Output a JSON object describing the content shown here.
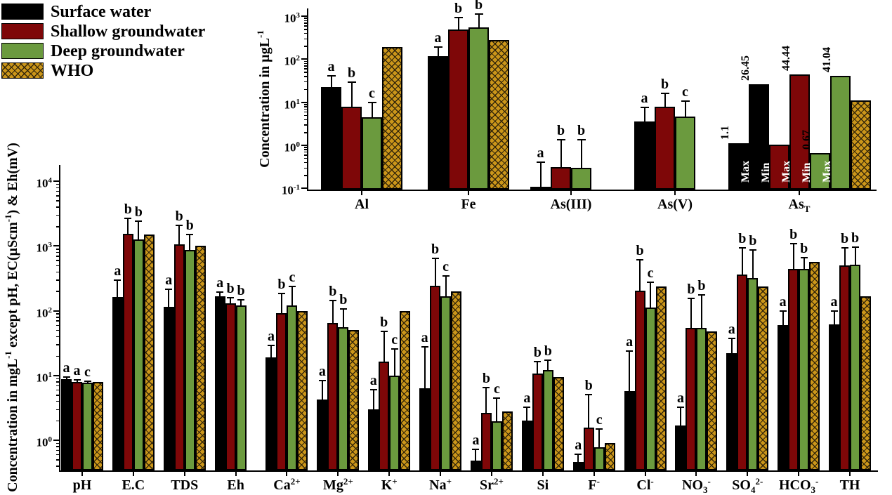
{
  "colors": {
    "surface": "#000000",
    "shallow": "#7E0708",
    "deep": "#6B9A3E",
    "who": "#CB961A",
    "who_hatch": "#33260a"
  },
  "legend": {
    "position": "top-left",
    "items": [
      {
        "series": "surface",
        "label": "Surface water"
      },
      {
        "series": "shallow",
        "label": "Shallow groundwater"
      },
      {
        "series": "deep",
        "label": "Deep groundwater"
      },
      {
        "series": "who",
        "label": "WHO",
        "pattern": "crosshatch"
      }
    ]
  },
  "chart_data": [
    {
      "id": "main",
      "type": "bar",
      "yscale": "log",
      "ylim": [
        0.34,
        17800
      ],
      "grid": false,
      "ytick_exponents": [
        0,
        1,
        2,
        3,
        4
      ],
      "ylabel_segments": [
        {
          "t": "Concentration in mgL"
        },
        {
          "t": "-1",
          "sup": true
        },
        {
          "t": " except pH, EC(µScm"
        },
        {
          "t": "-1",
          "sup": true
        },
        {
          "t": ") & Eh(mV)"
        }
      ],
      "categories": [
        {
          "label": {
            "main": "pH"
          },
          "bars": [
            {
              "series": "surface",
              "v": 8.7,
              "e": 9.4,
              "letter": "a"
            },
            {
              "series": "shallow",
              "v": 7.9,
              "e": 8.5,
              "letter": "a"
            },
            {
              "series": "deep",
              "v": 7.8,
              "e": 8.2,
              "letter": "c"
            },
            {
              "series": "who",
              "v": 8
            }
          ]
        },
        {
          "label": {
            "main": "E.C"
          },
          "bars": [
            {
              "series": "surface",
              "v": 165,
              "e": 300,
              "letter": "a"
            },
            {
              "series": "shallow",
              "v": 1550,
              "e": 2700,
              "letter": "b"
            },
            {
              "series": "deep",
              "v": 1250,
              "e": 2450,
              "letter": "b"
            },
            {
              "series": "who",
              "v": 1500
            }
          ]
        },
        {
          "label": {
            "main": "TDS"
          },
          "bars": [
            {
              "series": "surface",
              "v": 115,
              "e": 215,
              "letter": "a"
            },
            {
              "series": "shallow",
              "v": 1060,
              "e": 2100,
              "letter": "b"
            },
            {
              "series": "deep",
              "v": 860,
              "e": 1500,
              "letter": "b"
            },
            {
              "series": "who",
              "v": 1000
            }
          ]
        },
        {
          "label": {
            "main": "Eh"
          },
          "bars": [
            {
              "series": "surface",
              "v": 167,
              "e": 196,
              "letter": "a"
            },
            {
              "series": "shallow",
              "v": 131,
              "e": 160,
              "letter": "b"
            },
            {
              "series": "deep",
              "v": 122,
              "e": 147,
              "letter": "b"
            }
          ]
        },
        {
          "label": {
            "main": "Ca",
            "sup": "2+"
          },
          "bars": [
            {
              "series": "surface",
              "v": 19,
              "e": 29,
              "letter": "a"
            },
            {
              "series": "shallow",
              "v": 92,
              "e": 187,
              "letter": "b"
            },
            {
              "series": "deep",
              "v": 120,
              "e": 235,
              "letter": "c"
            },
            {
              "series": "who",
              "v": 100
            }
          ]
        },
        {
          "label": {
            "main": "Mg",
            "sup": "2+"
          },
          "bars": [
            {
              "series": "surface",
              "v": 4.3,
              "e": 8.4,
              "letter": "a"
            },
            {
              "series": "shallow",
              "v": 65,
              "e": 144,
              "letter": "b"
            },
            {
              "series": "deep",
              "v": 56,
              "e": 108,
              "letter": "b"
            },
            {
              "series": "who",
              "v": 50
            }
          ]
        },
        {
          "label": {
            "main": "K",
            "sup": "+"
          },
          "bars": [
            {
              "series": "surface",
              "v": 3.0,
              "e": 6.1,
              "letter": "a"
            },
            {
              "series": "shallow",
              "v": 16.5,
              "e": 48,
              "letter": "b"
            },
            {
              "series": "deep",
              "v": 10,
              "e": 26,
              "letter": "c"
            },
            {
              "series": "who",
              "v": 100
            }
          ]
        },
        {
          "label": {
            "main": "Na",
            "sup": "+"
          },
          "bars": [
            {
              "series": "surface",
              "v": 6.3,
              "e": 28,
              "letter": "a"
            },
            {
              "series": "shallow",
              "v": 245,
              "e": 645,
              "letter": "b"
            },
            {
              "series": "deep",
              "v": 167,
              "e": 345,
              "letter": "c"
            },
            {
              "series": "who",
              "v": 200
            }
          ]
        },
        {
          "label": {
            "main": "Sr",
            "sup": "2+"
          },
          "bars": [
            {
              "series": "surface",
              "v": 0.48,
              "e": 0.72,
              "letter": "a"
            },
            {
              "series": "shallow",
              "v": 2.65,
              "e": 6.5,
              "letter": "b"
            },
            {
              "series": "deep",
              "v": 1.95,
              "e": 4.5,
              "letter": "c"
            },
            {
              "series": "who",
              "v": 2.8
            }
          ]
        },
        {
          "label": {
            "main": "Si"
          },
          "bars": [
            {
              "series": "surface",
              "v": 2.0,
              "e": 3.2,
              "letter": "a"
            },
            {
              "series": "shallow",
              "v": 10.7,
              "e": 16.4,
              "letter": "b"
            },
            {
              "series": "deep",
              "v": 12.1,
              "e": 17.2,
              "letter": "b"
            },
            {
              "series": "who",
              "v": 9.5
            }
          ]
        },
        {
          "label": {
            "main": "F",
            "sup": "-"
          },
          "bars": [
            {
              "series": "surface",
              "v": 0.46,
              "e": 0.61,
              "letter": "a"
            },
            {
              "series": "shallow",
              "v": 1.55,
              "e": 5.1,
              "letter": "b"
            },
            {
              "series": "deep",
              "v": 0.78,
              "e": 1.5,
              "letter": "c"
            },
            {
              "series": "who",
              "v": 0.9
            }
          ]
        },
        {
          "label": {
            "main": "Cl",
            "sup": "-"
          },
          "bars": [
            {
              "series": "surface",
              "v": 5.7,
              "e": 24,
              "letter": "a"
            },
            {
              "series": "shallow",
              "v": 205,
              "e": 610,
              "letter": "b"
            },
            {
              "series": "deep",
              "v": 112,
              "e": 275,
              "letter": "c"
            },
            {
              "series": "who",
              "v": 240
            }
          ]
        },
        {
          "label": {
            "main": "NO",
            "sub": "3",
            "sup": "-"
          },
          "bars": [
            {
              "series": "surface",
              "v": 1.7,
              "e": 3.2,
              "letter": "a"
            },
            {
              "series": "shallow",
              "v": 54,
              "e": 155,
              "letter": "b"
            },
            {
              "series": "deep",
              "v": 54,
              "e": 175,
              "letter": "b"
            },
            {
              "series": "who",
              "v": 48
            }
          ]
        },
        {
          "label": {
            "main": "SO",
            "sub": "4",
            "sup": "2-"
          },
          "bars": [
            {
              "series": "surface",
              "v": 22,
              "e": 37,
              "letter": "a"
            },
            {
              "series": "shallow",
              "v": 360,
              "e": 930,
              "letter": "b"
            },
            {
              "series": "deep",
              "v": 320,
              "e": 870,
              "letter": "b"
            },
            {
              "series": "who",
              "v": 240
            }
          ]
        },
        {
          "label": {
            "main": "HCO",
            "sub": "3",
            "sup": "-"
          },
          "bars": [
            {
              "series": "surface",
              "v": 60,
              "e": 100,
              "letter": "a"
            },
            {
              "series": "shallow",
              "v": 444,
              "e": 1090,
              "letter": "b"
            },
            {
              "series": "deep",
              "v": 440,
              "e": 660,
              "letter": "b"
            },
            {
              "series": "who",
              "v": 570
            }
          ]
        },
        {
          "label": {
            "main": "TH"
          },
          "bars": [
            {
              "series": "surface",
              "v": 62,
              "e": 100,
              "letter": "a"
            },
            {
              "series": "shallow",
              "v": 500,
              "e": 930,
              "letter": "b"
            },
            {
              "series": "deep",
              "v": 520,
              "e": 960,
              "letter": "b"
            },
            {
              "series": "who",
              "v": 167
            }
          ]
        }
      ]
    },
    {
      "id": "inset",
      "type": "bar",
      "yscale": "log",
      "ylim": [
        0.1,
        1450
      ],
      "grid": false,
      "ytick_exponents": [
        -1,
        0,
        1,
        2,
        3
      ],
      "ylabel_segments": [
        {
          "t": "Concentration in µgL"
        },
        {
          "t": "-1",
          "sup": true
        }
      ],
      "categories": [
        {
          "label": {
            "main": "Al"
          },
          "bars": [
            {
              "series": "surface",
              "v": 23,
              "e": 41,
              "letter": "a"
            },
            {
              "series": "shallow",
              "v": 8,
              "e": 29,
              "letter": "b"
            },
            {
              "series": "deep",
              "v": 4.5,
              "e": 10,
              "letter": "c"
            },
            {
              "series": "who",
              "v": 195
            }
          ]
        },
        {
          "label": {
            "main": "Fe"
          },
          "bars": [
            {
              "series": "surface",
              "v": 118,
              "e": 192,
              "letter": "a"
            },
            {
              "series": "shallow",
              "v": 490,
              "e": 930,
              "letter": "b"
            },
            {
              "series": "deep",
              "v": 550,
              "e": 1120,
              "letter": "b"
            },
            {
              "series": "who",
              "v": 280
            }
          ]
        },
        {
          "label": {
            "main": "As(III)"
          },
          "bars": [
            {
              "series": "surface",
              "v": 0.11,
              "e": 0.4,
              "letter": "a"
            },
            {
              "series": "shallow",
              "v": 0.31,
              "e": 1.35,
              "letter": "b"
            },
            {
              "series": "deep",
              "v": 0.3,
              "e": 1.35,
              "letter": "b"
            }
          ]
        },
        {
          "label": {
            "main": "As(V)"
          },
          "bars": [
            {
              "series": "surface",
              "v": 3.6,
              "e": 7.5,
              "letter": "a"
            },
            {
              "series": "shallow",
              "v": 7.9,
              "e": 16,
              "letter": "b"
            },
            {
              "series": "deep",
              "v": 4.6,
              "e": 10.5,
              "letter": "c"
            }
          ]
        },
        {
          "label": {
            "main": "As",
            "sub": "T"
          },
          "bars": [
            {
              "series": "surface",
              "v": 1.1,
              "inner": "Min",
              "above": "1.1"
            },
            {
              "series": "surface",
              "v": 26.45,
              "inner": "Max",
              "above": "26.45"
            },
            {
              "series": "shallow",
              "v": 1.05,
              "inner": "Min",
              "above": "1.05"
            },
            {
              "series": "shallow",
              "v": 44.44,
              "inner": "Max",
              "above": "44.44"
            },
            {
              "series": "deep",
              "v": 0.67,
              "inner": "Min",
              "above": "0.67"
            },
            {
              "series": "deep",
              "v": 41.04,
              "inner": "Max",
              "above": "41.04"
            },
            {
              "series": "who",
              "v": 11
            }
          ]
        }
      ]
    }
  ]
}
